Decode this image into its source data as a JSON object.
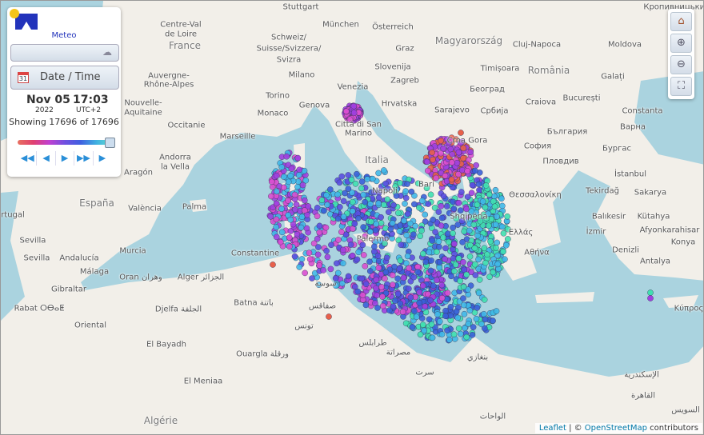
{
  "panel": {
    "logo_text": "Meteo",
    "date_time_label": "Date / Time",
    "calendar_day": "31",
    "date": "Nov 05",
    "year": "2022",
    "time": "17:03",
    "timezone": "UTC+2",
    "showing_text": "Showing 17696 of 17696",
    "slider_position": 1.0,
    "buttons": [
      "first-icon",
      "prev-icon",
      "play-icon",
      "fast-forward-icon",
      "next-icon"
    ]
  },
  "map_controls": [
    "home-icon",
    "zoom-in-icon",
    "zoom-out-icon",
    "fullscreen-icon"
  ],
  "attribution": {
    "leaflet": "Leaflet",
    "separator": " | © ",
    "osm": "OpenStreetMap",
    "suffix": " contributors"
  },
  "colors": {
    "sea": "#aad3df",
    "land": "#f2efe9",
    "point_palette": [
      "#e8604a",
      "#d94fd0",
      "#a040e0",
      "#5a4fe0",
      "#3a60d8",
      "#40b8e8",
      "#40e0b0"
    ]
  },
  "place_labels": [
    "Stuttgart",
    "München",
    "Österreich",
    "Magyarország",
    "Cluj-Napoca",
    "România",
    "Moldova",
    "Кропивницький",
    "Schweiz/",
    "Suisse/Svizzera/",
    "Svizra",
    "Centre-Val",
    "de Loire",
    "France",
    "Auvergne-",
    "Rhône-Alpes",
    "Nouvelle-",
    "Aquitaine",
    "Occitanie",
    "Marseille",
    "Andorra",
    "la Vella",
    "Aragón",
    "España",
    "València",
    "Palma",
    "Murcia",
    "rtugal",
    "Sevilla",
    "Andalucía",
    "Málaga",
    "Gibraltar",
    "Rabat ⵔⴱⴰⵟ",
    "Oran وهران",
    "Alger الجزائر",
    "Constantine",
    "Batna باتنة",
    "Djelfa الجلفة",
    "Oriental",
    "El Bayadh",
    "Ouargla ورقلة",
    "El Meniaa",
    "Algérie",
    "Milano",
    "Torino",
    "Genova",
    "Monaco",
    "Venezia",
    "Slovenija",
    "Hrvatska",
    "Città di San",
    "Marino",
    "Italia",
    "Napoli",
    "Bari",
    "Palermo",
    "Sarajevo",
    "Србија",
    "Београд",
    "Timișoara",
    "Craiova",
    "București",
    "Constanta",
    "Варна",
    "България",
    "Бургас",
    "София",
    "Пловдив",
    "İstanbul",
    "Tekirdağ",
    "Sakarya",
    "Balıkesir",
    "Kütahya",
    "İzmir",
    "Afyonkarahisar",
    "Konya",
    "Denizli",
    "Antalya",
    "Θεσσαλονίκη",
    "Αθήνα",
    "Graz",
    "Galați",
    "Crna Gora",
    "Sevilla",
    "تونس",
    "صفاقس",
    "سوسة",
    "طرابلس",
    "مصراتة",
    "بنغازي",
    "الإسكندرية",
    "القاهرة",
    "السويس",
    "Κύπρος",
    "Ελλάς",
    "Zagreb",
    "Shqipëria",
    "سرت",
    "الواحات"
  ]
}
